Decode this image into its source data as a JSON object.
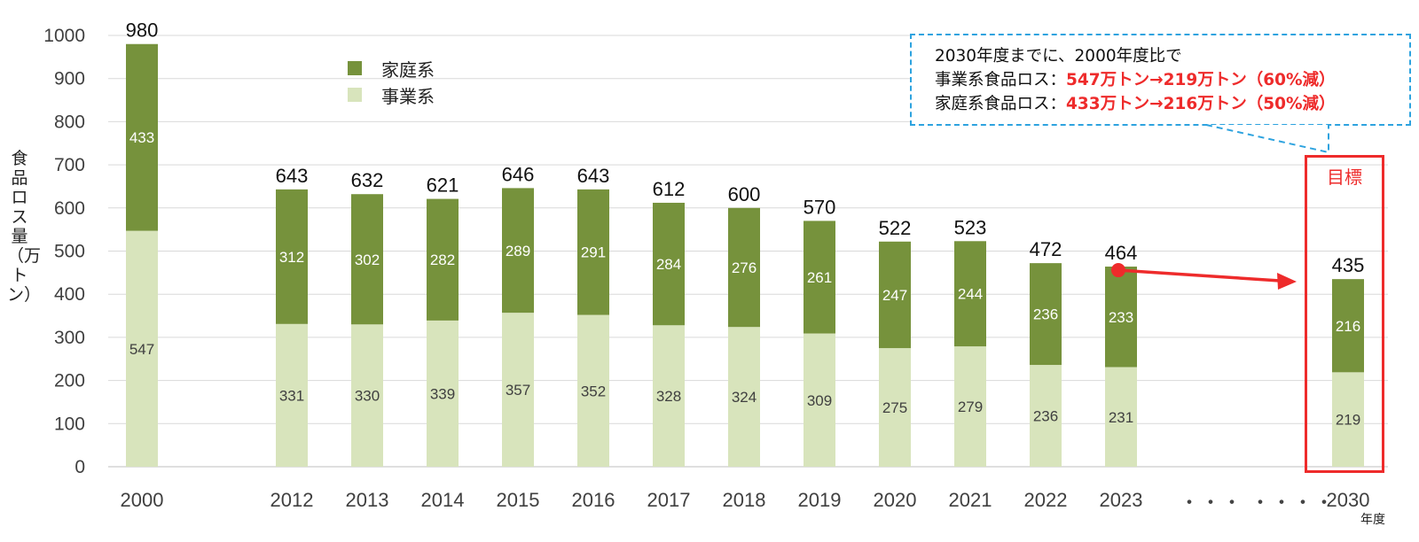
{
  "chart_data": {
    "type": "bar",
    "stacked": true,
    "categories": [
      "2000",
      "2012",
      "2013",
      "2014",
      "2015",
      "2016",
      "2017",
      "2018",
      "2019",
      "2020",
      "2021",
      "2022",
      "2023",
      "2030"
    ],
    "series": [
      {
        "name": "事業系",
        "color": "#d8e4bc",
        "values": [
          547,
          331,
          330,
          339,
          357,
          352,
          328,
          324,
          309,
          275,
          279,
          236,
          231,
          219
        ]
      },
      {
        "name": "家庭系",
        "color": "#76923c",
        "values": [
          433,
          312,
          302,
          282,
          289,
          291,
          284,
          276,
          261,
          247,
          244,
          236,
          233,
          216
        ]
      }
    ],
    "totals": [
      980,
      643,
      632,
      621,
      646,
      643,
      612,
      600,
      570,
      522,
      523,
      472,
      464,
      435
    ],
    "ylabel": "食品ロス量（万トン）",
    "xunit": "年度",
    "ylim": [
      0,
      1000
    ],
    "yticks": [
      0,
      100,
      200,
      300,
      400,
      500,
      600,
      700,
      800,
      900,
      1000
    ],
    "gap_markers": [
      "・・・",
      "・・・・"
    ],
    "target_label": "目標",
    "legend": [
      {
        "name": "家庭系",
        "color": "#76923c"
      },
      {
        "name": "事業系",
        "color": "#d8e4bc"
      }
    ],
    "annotation": {
      "line1": "2030年度までに、2000年度比で",
      "line2_prefix": "事業系食品ロス：",
      "line2_value": "547万トン→219万トン（60%減）",
      "line3_prefix": "家庭系食品ロス：",
      "line3_value": "433万トン→216万トン（50%減）"
    }
  }
}
